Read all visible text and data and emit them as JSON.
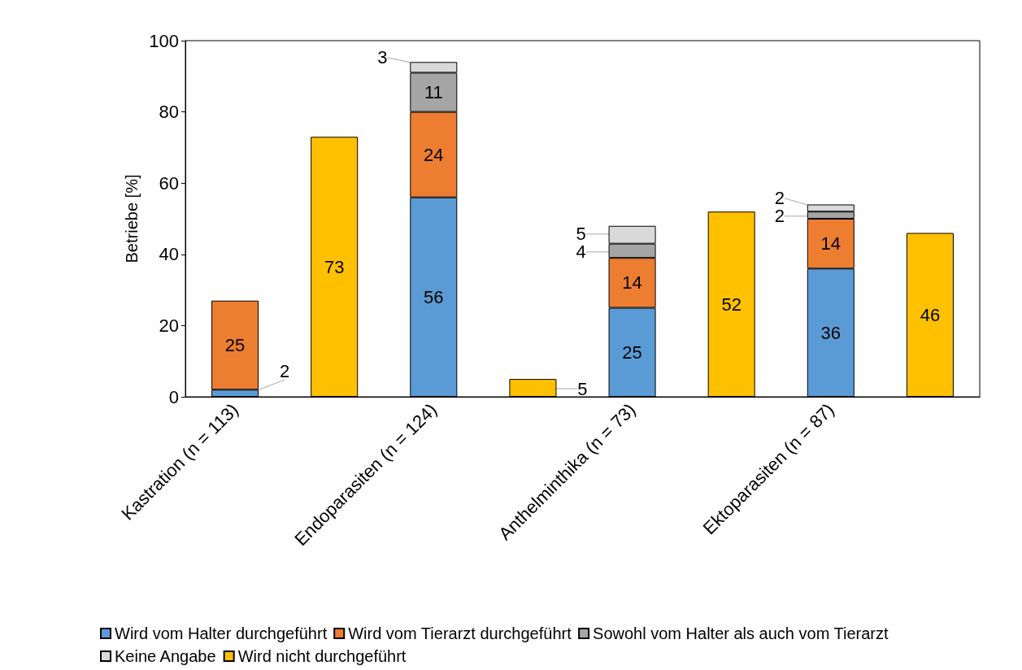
{
  "chart_data": {
    "type": "bar",
    "ylabel": "Betriebe [%]",
    "categories": [
      "Kastration (n = 113)",
      null,
      "Endoparasiten (n = 124)",
      null,
      "Anthelminthika (n = 73)",
      null,
      "Ektoparasiten (n = 87)",
      null
    ],
    "series": [
      {
        "name": "Wird vom Halter durchgeführt",
        "color": "#5b9bd5",
        "values": [
          2,
          null,
          56,
          null,
          25,
          null,
          36,
          null
        ]
      },
      {
        "name": "Wird vom Tierarzt durchgeführt",
        "color": "#ed7d31",
        "values": [
          25,
          null,
          24,
          null,
          14,
          null,
          14,
          null
        ]
      },
      {
        "name": "Sowohl vom Halter als auch vom Tierarzt",
        "color": "#a5a5a5",
        "values": [
          null,
          null,
          11,
          null,
          4,
          null,
          2,
          null
        ]
      },
      {
        "name": "Keine Angabe",
        "color": "#d9d9d9",
        "values": [
          null,
          null,
          3,
          null,
          5,
          null,
          2,
          null
        ]
      },
      {
        "name": "Wird nicht durchgeführt",
        "color": "#ffc000",
        "values": [
          null,
          73,
          null,
          5,
          null,
          52,
          null,
          46
        ]
      }
    ],
    "stacked": true,
    "ylim": [
      0,
      100
    ],
    "yticks": [
      0,
      20,
      40,
      60,
      80,
      100
    ],
    "grid": false,
    "legend": "bottom left",
    "data_labels": true
  }
}
